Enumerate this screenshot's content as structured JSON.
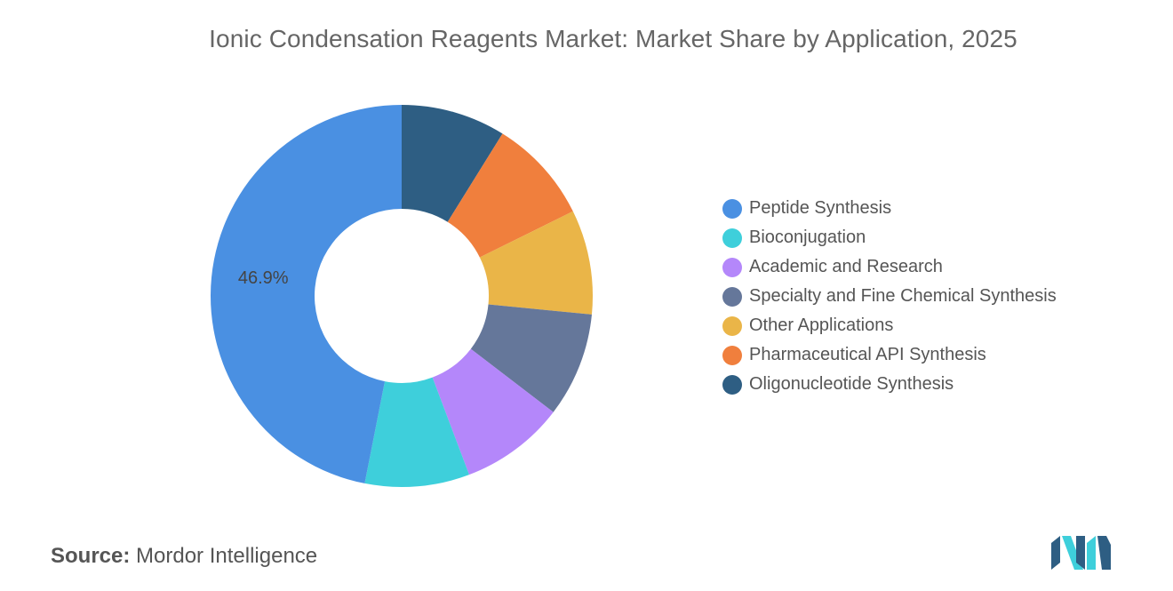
{
  "chart_data": {
    "type": "pie",
    "title": "Ionic Condensation Reagents Market: Market Share by Application, 2025",
    "categories": [
      "Peptide Synthesis",
      "Bioconjugation",
      "Academic and Research",
      "Specialty and Fine Chemical Synthesis",
      "Other Applications",
      "Pharmaceutical API Synthesis",
      "Oligonucleotide Synthesis"
    ],
    "values": [
      46.9,
      8.85,
      8.85,
      8.85,
      8.85,
      8.85,
      8.85
    ],
    "colors": [
      "#4A90E2",
      "#3ECFDB",
      "#B487FA",
      "#65779A",
      "#EAB548",
      "#F07F3D",
      "#2E5E83"
    ],
    "data_labels": [
      "46.9%"
    ],
    "legend_position": "right",
    "donut": true
  },
  "source": {
    "prefix": "Source:",
    "text": "Mordor Intelligence"
  },
  "logo_icon": "mordor-intelligence-logo"
}
